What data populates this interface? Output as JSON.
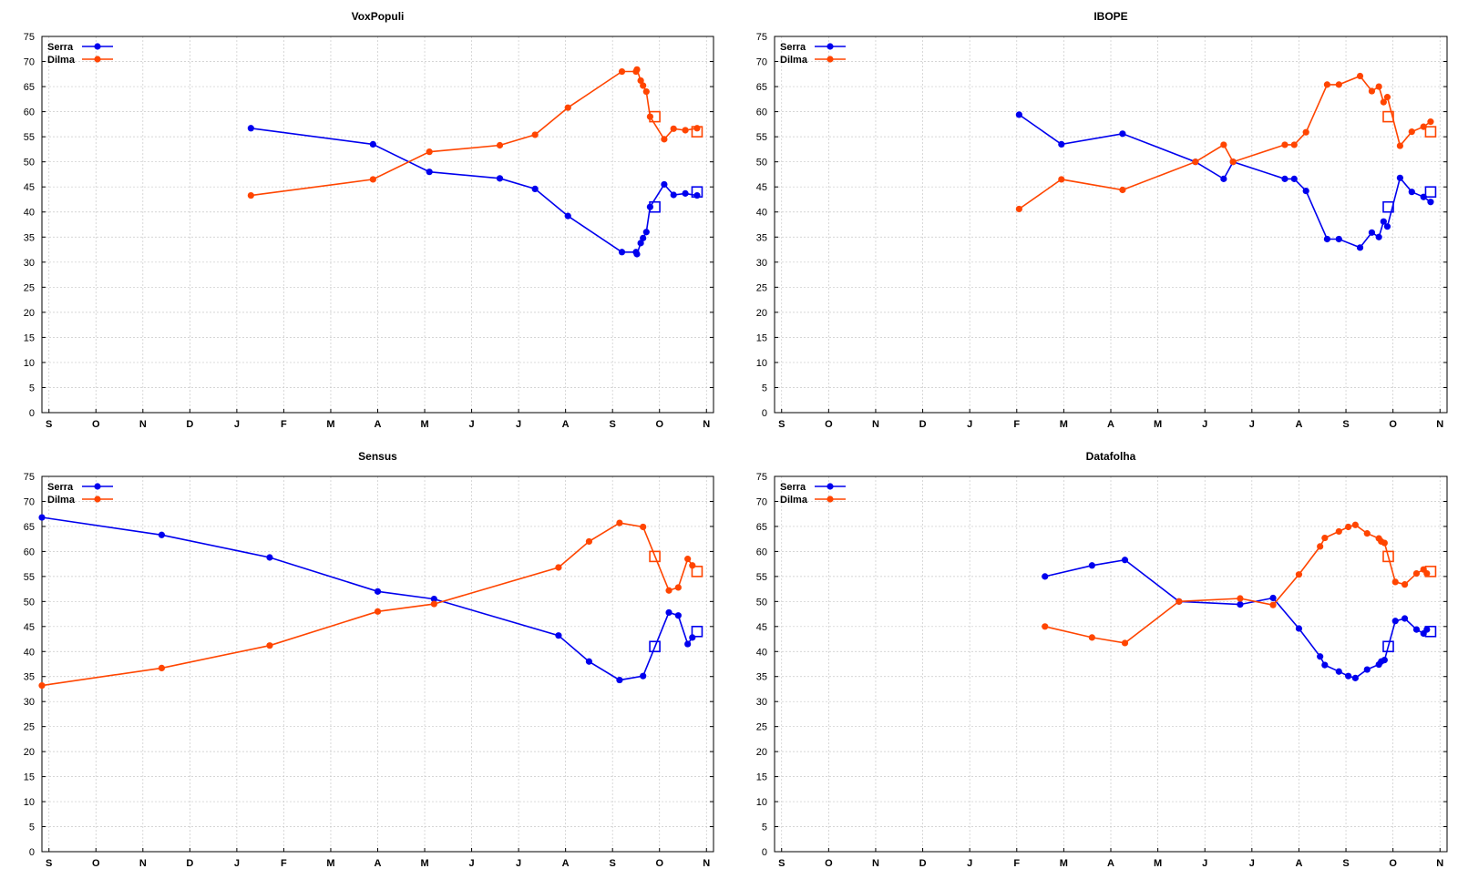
{
  "chart_data": [
    {
      "type": "line",
      "title": "VoxPopuli",
      "x_ticks": [
        "S",
        "O",
        "N",
        "D",
        "J",
        "F",
        "M",
        "A",
        "M",
        "J",
        "J",
        "A",
        "S",
        "O",
        "N"
      ],
      "y_ticks": [
        0,
        5,
        10,
        15,
        20,
        25,
        30,
        35,
        40,
        45,
        50,
        55,
        60,
        65,
        70,
        75
      ],
      "ylim": [
        0,
        75
      ],
      "xlim": [
        -0.15,
        14.15
      ],
      "grid": true,
      "legend_position": "top-left",
      "series": [
        {
          "name": "Serra",
          "color": "#0000ee",
          "x": [
            4.3,
            6.9,
            8.1,
            9.6,
            10.35,
            11.05,
            12.2,
            12.5,
            12.52,
            12.6,
            12.65,
            12.72,
            12.8,
            13.1,
            13.3,
            13.55,
            13.8
          ],
          "y": [
            56.7,
            53.5,
            48,
            46.7,
            44.6,
            39.2,
            32,
            32,
            31.6,
            33.8,
            34.8,
            36,
            41,
            45.5,
            43.4,
            43.7,
            43.3
          ]
        },
        {
          "name": "Dilma",
          "color": "#ff4500",
          "x": [
            4.3,
            6.9,
            8.1,
            9.6,
            10.35,
            11.05,
            12.2,
            12.5,
            12.52,
            12.6,
            12.65,
            12.72,
            12.8,
            13.1,
            13.3,
            13.55,
            13.8
          ],
          "y": [
            43.3,
            46.5,
            52,
            53.3,
            55.4,
            60.8,
            68,
            68,
            68.4,
            66.2,
            65.2,
            64,
            59,
            54.5,
            56.6,
            56.3,
            56.7
          ]
        }
      ],
      "markers": [
        {
          "x": 12.9,
          "y": 41,
          "color": "#0000ee"
        },
        {
          "x": 13.8,
          "y": 44,
          "color": "#0000ee"
        },
        {
          "x": 12.9,
          "y": 59,
          "color": "#ff4500"
        },
        {
          "x": 13.8,
          "y": 56,
          "color": "#ff4500"
        }
      ]
    },
    {
      "type": "line",
      "title": "IBOPE",
      "x_ticks": [
        "S",
        "O",
        "N",
        "D",
        "J",
        "F",
        "M",
        "A",
        "M",
        "J",
        "J",
        "A",
        "S",
        "O",
        "N"
      ],
      "y_ticks": [
        0,
        5,
        10,
        15,
        20,
        25,
        30,
        35,
        40,
        45,
        50,
        55,
        60,
        65,
        70,
        75
      ],
      "ylim": [
        0,
        75
      ],
      "xlim": [
        -0.15,
        14.15
      ],
      "grid": true,
      "legend_position": "top-left",
      "series": [
        {
          "name": "Serra",
          "color": "#0000ee",
          "x": [
            5.05,
            5.95,
            7.25,
            8.8,
            9.4,
            9.6,
            10.7,
            10.9,
            11.15,
            11.6,
            11.85,
            12.3,
            12.55,
            12.7,
            12.8,
            12.88,
            13.15,
            13.4,
            13.65,
            13.8
          ],
          "y": [
            59.4,
            53.5,
            55.6,
            50,
            46.6,
            50,
            46.6,
            46.6,
            44.2,
            34.6,
            34.6,
            32.9,
            35.9,
            35,
            38.1,
            37.1,
            46.8,
            44,
            43,
            42
          ],
          "labels": []
        },
        {
          "name": "Dilma",
          "color": "#ff4500",
          "x": [
            5.05,
            5.95,
            7.25,
            8.8,
            9.4,
            9.6,
            10.7,
            10.9,
            11.15,
            11.6,
            11.85,
            12.3,
            12.55,
            12.7,
            12.8,
            12.88,
            13.15,
            13.4,
            13.65,
            13.8
          ],
          "y": [
            40.6,
            46.5,
            44.4,
            50,
            53.4,
            50,
            53.4,
            53.4,
            55.9,
            65.4,
            65.4,
            67.1,
            64.1,
            65,
            61.9,
            62.9,
            53.2,
            56,
            57,
            58
          ]
        }
      ],
      "markers": [
        {
          "x": 12.9,
          "y": 41,
          "color": "#0000ee"
        },
        {
          "x": 13.8,
          "y": 44,
          "color": "#0000ee"
        },
        {
          "x": 12.9,
          "y": 59,
          "color": "#ff4500"
        },
        {
          "x": 13.8,
          "y": 56,
          "color": "#ff4500"
        }
      ]
    },
    {
      "type": "line",
      "title": "Sensus",
      "x_ticks": [
        "S",
        "O",
        "N",
        "D",
        "J",
        "F",
        "M",
        "A",
        "M",
        "J",
        "J",
        "A",
        "S",
        "O",
        "N"
      ],
      "y_ticks": [
        0,
        5,
        10,
        15,
        20,
        25,
        30,
        35,
        40,
        45,
        50,
        55,
        60,
        65,
        70,
        75
      ],
      "ylim": [
        0,
        75
      ],
      "xlim": [
        -0.15,
        14.15
      ],
      "grid": true,
      "legend_position": "top-left",
      "series": [
        {
          "name": "Serra",
          "color": "#0000ee",
          "x": [
            -0.15,
            2.4,
            4.7,
            7.0,
            8.2,
            10.85,
            11.5,
            12.15,
            12.65,
            13.2,
            13.4,
            13.6,
            13.7
          ],
          "y": [
            66.8,
            63.3,
            58.8,
            52,
            50.5,
            43.2,
            38,
            34.3,
            35.1,
            47.8,
            47.2,
            41.5,
            42.8
          ],
          "labels": []
        },
        {
          "name": "Dilma",
          "color": "#ff4500",
          "x": [
            -0.15,
            2.4,
            4.7,
            7.0,
            8.2,
            10.85,
            11.5,
            12.15,
            12.65,
            13.2,
            13.4,
            13.6,
            13.7
          ],
          "y": [
            33.2,
            36.7,
            41.2,
            48,
            49.5,
            56.8,
            62,
            65.7,
            64.9,
            52.2,
            52.8,
            58.5,
            57.2
          ]
        }
      ],
      "markers": [
        {
          "x": 12.9,
          "y": 41,
          "color": "#0000ee"
        },
        {
          "x": 13.8,
          "y": 44,
          "color": "#0000ee"
        },
        {
          "x": 12.9,
          "y": 59,
          "color": "#ff4500"
        },
        {
          "x": 13.8,
          "y": 56,
          "color": "#ff4500"
        }
      ]
    },
    {
      "type": "line",
      "title": "Datafolha",
      "x_ticks": [
        "S",
        "O",
        "N",
        "D",
        "J",
        "F",
        "M",
        "A",
        "M",
        "J",
        "J",
        "A",
        "S",
        "O",
        "N"
      ],
      "y_ticks": [
        0,
        5,
        10,
        15,
        20,
        25,
        30,
        35,
        40,
        45,
        50,
        55,
        60,
        65,
        70,
        75
      ],
      "ylim": [
        0,
        75
      ],
      "xlim": [
        -0.15,
        14.15
      ],
      "grid": true,
      "legend_position": "top-left",
      "series": [
        {
          "name": "Serra",
          "color": "#0000ee",
          "x": [
            5.6,
            6.6,
            7.3,
            8.45,
            9.75,
            10.45,
            11.0,
            11.45,
            11.55,
            11.85,
            12.05,
            12.2,
            12.45,
            12.7,
            12.75,
            12.82,
            13.05,
            13.25,
            13.5,
            13.65,
            13.72
          ],
          "y": [
            55,
            57.2,
            58.3,
            50,
            49.4,
            50.7,
            44.6,
            39,
            37.3,
            36,
            35.1,
            34.7,
            36.4,
            37.4,
            38,
            38.3,
            46.1,
            46.6,
            44.4,
            43.6,
            44.4
          ]
        },
        {
          "name": "Dilma",
          "color": "#ff4500",
          "x": [
            5.6,
            6.6,
            7.3,
            8.45,
            9.75,
            10.45,
            11.0,
            11.45,
            11.55,
            11.85,
            12.05,
            12.2,
            12.45,
            12.7,
            12.75,
            12.82,
            13.05,
            13.25,
            13.5,
            13.65,
            13.72
          ],
          "y": [
            45,
            42.8,
            41.7,
            50,
            50.6,
            49.3,
            55.4,
            61,
            62.7,
            64,
            64.9,
            65.3,
            63.6,
            62.6,
            62,
            61.7,
            53.9,
            53.4,
            55.6,
            56.4,
            55.6
          ]
        }
      ],
      "markers": [
        {
          "x": 12.9,
          "y": 41,
          "color": "#0000ee"
        },
        {
          "x": 13.8,
          "y": 44,
          "color": "#0000ee"
        },
        {
          "x": 12.9,
          "y": 59,
          "color": "#ff4500"
        },
        {
          "x": 13.8,
          "y": 56,
          "color": "#ff4500"
        }
      ]
    }
  ]
}
